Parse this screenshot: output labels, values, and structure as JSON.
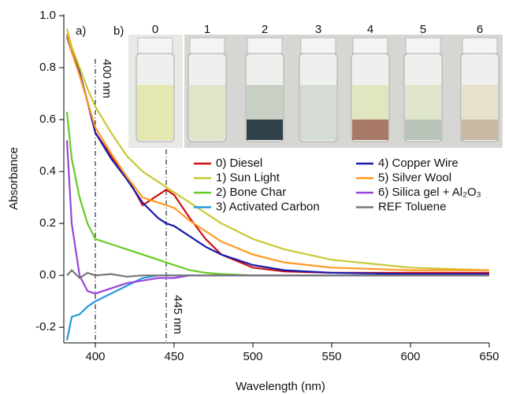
{
  "chart_data": {
    "type": "line",
    "x_label": "Wavelength (nm)",
    "y_label": "Absorbance",
    "panel_labels": [
      "a)",
      "b)"
    ],
    "inset_labels": [
      "0",
      "1",
      "2",
      "3",
      "4",
      "5",
      "6"
    ],
    "xlim": [
      380,
      650
    ],
    "ylim": [
      -0.26,
      1.0
    ],
    "xticks": [
      400,
      450,
      500,
      550,
      600,
      650
    ],
    "yticks": [
      -0.2,
      {
        "value": 0,
        "label": "0.0"
      },
      0.2,
      0.4,
      0.6,
      0.8,
      {
        "value": 1,
        "label": "1.0"
      }
    ],
    "annotations": [
      {
        "x": 400,
        "text": "400 nm"
      },
      {
        "x": 445,
        "text": "445 nm"
      }
    ],
    "x": [
      382,
      385,
      390,
      395,
      400,
      410,
      420,
      430,
      440,
      445,
      450,
      460,
      470,
      480,
      500,
      520,
      550,
      600,
      650
    ],
    "series": [
      {
        "name": "0) Diesel",
        "color": "#cc1111",
        "values": [
          0.93,
          0.87,
          0.78,
          0.67,
          0.55,
          0.46,
          0.38,
          0.27,
          0.31,
          0.33,
          0.31,
          0.22,
          0.14,
          0.08,
          0.03,
          0.015,
          0.01,
          0.01,
          0.01
        ]
      },
      {
        "name": "1) Sun Light",
        "color": "#c8c832",
        "values": [
          0.95,
          0.88,
          0.8,
          0.72,
          0.65,
          0.55,
          0.46,
          0.4,
          0.36,
          0.34,
          0.32,
          0.28,
          0.24,
          0.2,
          0.14,
          0.1,
          0.06,
          0.03,
          0.02
        ]
      },
      {
        "name": "2) Bone Char",
        "color": "#66cc22",
        "values": [
          0.63,
          0.45,
          0.3,
          0.2,
          0.14,
          0.12,
          0.1,
          0.08,
          0.06,
          0.05,
          0.04,
          0.02,
          0.01,
          0.005,
          0,
          0,
          0,
          0,
          0
        ]
      },
      {
        "name": "3) Activated Carbon",
        "color": "#2299dd",
        "values": [
          -0.25,
          -0.16,
          -0.15,
          -0.12,
          -0.1,
          -0.07,
          -0.04,
          -0.01,
          0,
          0,
          0,
          0,
          0,
          0,
          0,
          0,
          0,
          0,
          0
        ]
      },
      {
        "name": "4) Copper Wire",
        "color": "#1a1aaa",
        "values": [
          0.92,
          0.86,
          0.78,
          0.67,
          0.55,
          0.45,
          0.37,
          0.28,
          0.22,
          0.2,
          0.19,
          0.15,
          0.11,
          0.08,
          0.04,
          0.02,
          0.01,
          0.005,
          0.005
        ]
      },
      {
        "name": "5) Silver Wool",
        "color": "#ff9922",
        "values": [
          0.93,
          0.86,
          0.77,
          0.67,
          0.57,
          0.47,
          0.38,
          0.3,
          0.28,
          0.27,
          0.26,
          0.21,
          0.17,
          0.13,
          0.08,
          0.05,
          0.03,
          0.02,
          0.02
        ]
      },
      {
        "name": "6) Silica gel + Al₂O₃",
        "color": "#9944dd",
        "values": [
          0.52,
          0.2,
          0.0,
          -0.06,
          -0.07,
          -0.05,
          -0.03,
          -0.02,
          -0.01,
          -0.01,
          -0.01,
          0,
          0,
          0,
          0,
          0,
          0,
          0,
          0
        ]
      },
      {
        "name": "REF Toluene",
        "color": "#777777",
        "values": [
          0,
          0.02,
          -0.01,
          0.01,
          0,
          0.005,
          -0.005,
          0,
          0,
          0,
          0,
          0,
          0,
          0,
          0,
          0,
          0,
          0,
          0
        ]
      }
    ]
  }
}
